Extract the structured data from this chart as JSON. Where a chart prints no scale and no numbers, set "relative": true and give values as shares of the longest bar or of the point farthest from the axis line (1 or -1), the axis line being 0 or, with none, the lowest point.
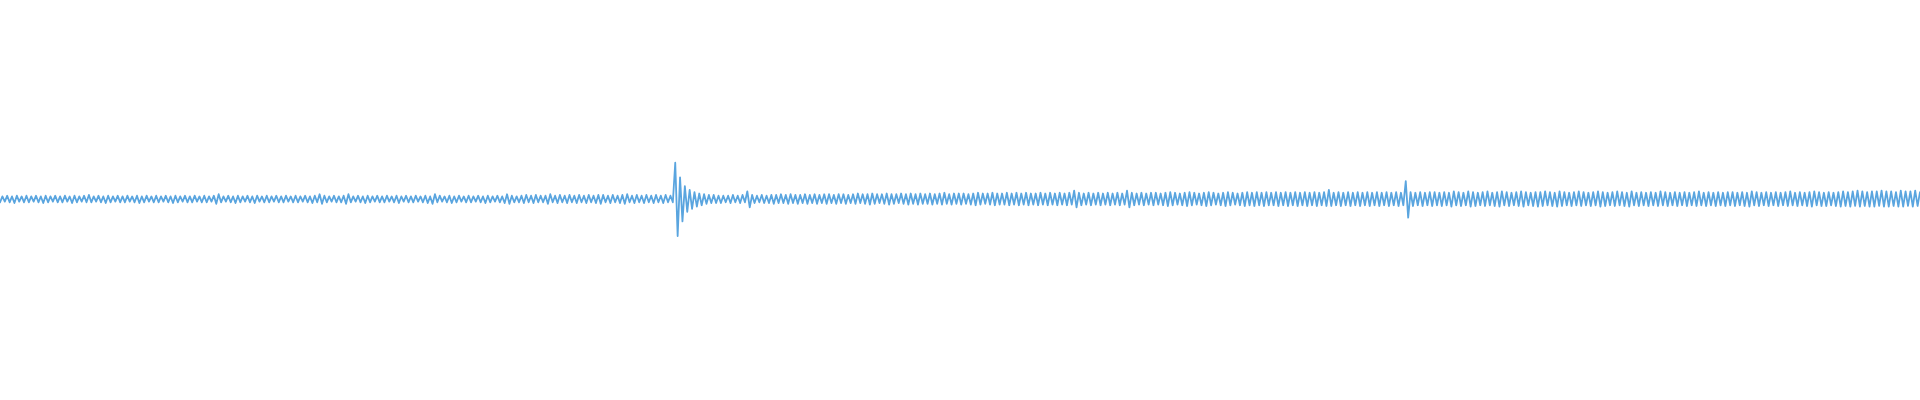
{
  "chart_data": {
    "type": "line",
    "relative": true,
    "marker": "none",
    "color": "#5aa5df",
    "categories": [
      null,
      null,
      null,
      null,
      null,
      null,
      null,
      null,
      null,
      null,
      null,
      null,
      null,
      null,
      null,
      null,
      null,
      null,
      null,
      null,
      null,
      null,
      null,
      null,
      null,
      null,
      null,
      null,
      null,
      null,
      null,
      null,
      null,
      null,
      null,
      null,
      null,
      null,
      null,
      null,
      null,
      null,
      null,
      null,
      null,
      null,
      null,
      null,
      null,
      null,
      null,
      null,
      null,
      null,
      null,
      null,
      null,
      null,
      null,
      null,
      null,
      null,
      null,
      null,
      null,
      null,
      null,
      null,
      null,
      null,
      null,
      null,
      null,
      null,
      null,
      null,
      null,
      null,
      null,
      null,
      null,
      null,
      null,
      null,
      null,
      null,
      null,
      null,
      null,
      null,
      null,
      null,
      null,
      null,
      null,
      null,
      null,
      null,
      null,
      null,
      null,
      null,
      null,
      null,
      null,
      null,
      null,
      null,
      null,
      null,
      null,
      null,
      null,
      null,
      null,
      null,
      null,
      null,
      null,
      null,
      null,
      null,
      null,
      null,
      null,
      null,
      null,
      null,
      null,
      null,
      null,
      null,
      null,
      null,
      null,
      null,
      null,
      null,
      null,
      null,
      null,
      null,
      null,
      null,
      null,
      null,
      null,
      null,
      null,
      null,
      null,
      null,
      null,
      null,
      null,
      null,
      null,
      null,
      null,
      null,
      null,
      null,
      null,
      null,
      null,
      null,
      null,
      null,
      null,
      null,
      null,
      null,
      null,
      null,
      null,
      null,
      null,
      null,
      null,
      null,
      null,
      null,
      null,
      null,
      null,
      null,
      null,
      null,
      null,
      null,
      null,
      null,
      null,
      null,
      null,
      null,
      null,
      null,
      null,
      null,
      null,
      null,
      null,
      null,
      null,
      null,
      null,
      null,
      null,
      null,
      null,
      null,
      null,
      null,
      null,
      null,
      null,
      null,
      null,
      null,
      null,
      null,
      null,
      null,
      null,
      null,
      null,
      null,
      null,
      null,
      null,
      null,
      null,
      null,
      null,
      null,
      null,
      null,
      null,
      null,
      null,
      null,
      null,
      null,
      null,
      null,
      null,
      null,
      null,
      null,
      null,
      null,
      null,
      null,
      null,
      null,
      null,
      null,
      null,
      null,
      null,
      null,
      null,
      null,
      null,
      null,
      null,
      null,
      null,
      null,
      null,
      null,
      null,
      null,
      null,
      null,
      null,
      null,
      null,
      null,
      null,
      null,
      null,
      null,
      null,
      null,
      null,
      null,
      null,
      null,
      null,
      null,
      null,
      null,
      null,
      null,
      null,
      null,
      null,
      null,
      null,
      null,
      null,
      null,
      null,
      null,
      null,
      null,
      null,
      null,
      null,
      null,
      null,
      null,
      null,
      null,
      null,
      null,
      null,
      null,
      null,
      null,
      null,
      null,
      null,
      null,
      null,
      null,
      null,
      null,
      null,
      null,
      null,
      null,
      null,
      null,
      null,
      null,
      null,
      null,
      null,
      null,
      null,
      null,
      null,
      null,
      null,
      null,
      null,
      null,
      null,
      null,
      null,
      null,
      null,
      null,
      null,
      null,
      null,
      null,
      null,
      null,
      null,
      null,
      null,
      null,
      null,
      null,
      null,
      null,
      null,
      null,
      null,
      null,
      null,
      null,
      null,
      null,
      null,
      null,
      null,
      null,
      null,
      null,
      null,
      null,
      null,
      null,
      null,
      null,
      null,
      null,
      null,
      null,
      null,
      null,
      null,
      null,
      null,
      null,
      null,
      null,
      null,
      null,
      null,
      null,
      null,
      null,
      null,
      null,
      null,
      null,
      null,
      null,
      null,
      null,
      null,
      null,
      null,
      null,
      null,
      null,
      null,
      null,
      null,
      null,
      null,
      null,
      null,
      null,
      null,
      null,
      null,
      null,
      null,
      null,
      null,
      null,
      null,
      null,
      null,
      null,
      null,
      null,
      null,
      null,
      null,
      null,
      null,
      null,
      null,
      null,
      null,
      null,
      null,
      null,
      null,
      null,
      null,
      null,
      null,
      null,
      null,
      null,
      null,
      null,
      null,
      null,
      null,
      null,
      null,
      null,
      null,
      null,
      null,
      null,
      null,
      null,
      null,
      null,
      null,
      null,
      null,
      null,
      null,
      null,
      null,
      null,
      null,
      null,
      null,
      null,
      null,
      null,
      null,
      null,
      null,
      null,
      null,
      null,
      null,
      null,
      null,
      null,
      null,
      null,
      null,
      null,
      null,
      null,
      null,
      null,
      null,
      null,
      null,
      null,
      null,
      null,
      null,
      null,
      null,
      null,
      null,
      null,
      null,
      null,
      null,
      null,
      null,
      null,
      null,
      null,
      null,
      null,
      null,
      null,
      null,
      null,
      null,
      null,
      null,
      null,
      null,
      null,
      null,
      null,
      null,
      null,
      null,
      null,
      null,
      null,
      null,
      null,
      null,
      null,
      null,
      null,
      null,
      null,
      null,
      null,
      null,
      null,
      null,
      null,
      null,
      null,
      null,
      null,
      null,
      null,
      null,
      null,
      null,
      null,
      null,
      null,
      null,
      null,
      null,
      null,
      null,
      null,
      null,
      null,
      null,
      null,
      null,
      null,
      null,
      null,
      null,
      null,
      null,
      null,
      null,
      null,
      null,
      null,
      null,
      null,
      null,
      null,
      null,
      null,
      null,
      null,
      null,
      null,
      null,
      null,
      null,
      null,
      null,
      null,
      null,
      null,
      null,
      null,
      null,
      null,
      null,
      null,
      null,
      null,
      null,
      null,
      null,
      null,
      null,
      null,
      null,
      null,
      null,
      null,
      null,
      null,
      null,
      null,
      null,
      null,
      null,
      null,
      null,
      null,
      null,
      null,
      null,
      null,
      null,
      null,
      null,
      null,
      null,
      null,
      null,
      null,
      null,
      null,
      null,
      null,
      null,
      null,
      null,
      null,
      null,
      null,
      null,
      null,
      null,
      null,
      null,
      null,
      null,
      null,
      null,
      null,
      null,
      null,
      null,
      null,
      null,
      null,
      null,
      null,
      null,
      null,
      null,
      null,
      null,
      null,
      null,
      null,
      null,
      null,
      null,
      null,
      null,
      null,
      null,
      null,
      null,
      null,
      null,
      null,
      null,
      null,
      null,
      null,
      null,
      null,
      null,
      null,
      null,
      null,
      null,
      null,
      null,
      null,
      null,
      null,
      null,
      null,
      null,
      null,
      null,
      null,
      null,
      null,
      null,
      null,
      null,
      null,
      null,
      null,
      null,
      null,
      null,
      null,
      null,
      null,
      null,
      null,
      null,
      null,
      null,
      null,
      null,
      null,
      null,
      null,
      null,
      null,
      null,
      null,
      null,
      null,
      null,
      null,
      null,
      null,
      null,
      null,
      null,
      null,
      null,
      null,
      null,
      null,
      null,
      null,
      null,
      null,
      null,
      null,
      null,
      null,
      null,
      null,
      null,
      null,
      null,
      null,
      null,
      null,
      null,
      null,
      null,
      null,
      null,
      null,
      null,
      null,
      null,
      null,
      null,
      null,
      null,
      null
    ],
    "values": [
      0.46,
      0.54,
      0.47,
      0.55,
      0.46,
      0.54,
      0.45,
      0.55,
      0.47,
      0.54,
      0.46,
      0.55,
      0.46,
      0.54,
      0.47,
      0.55,
      0.46,
      0.54,
      0.45,
      0.55,
      0.46,
      0.54,
      0.47,
      0.55,
      0.46,
      0.54,
      0.46,
      0.55,
      0.47,
      0.54,
      0.45,
      0.55,
      0.46,
      0.54,
      0.47,
      0.55,
      0.46,
      0.56,
      0.46,
      0.54,
      0.47,
      0.55,
      0.46,
      0.54,
      0.45,
      0.55,
      0.46,
      0.54,
      0.47,
      0.55,
      0.46,
      0.54,
      0.46,
      0.55,
      0.47,
      0.54,
      0.46,
      0.55,
      0.45,
      0.54,
      0.46,
      0.55,
      0.47,
      0.54,
      0.46,
      0.55,
      0.46,
      0.54,
      0.47,
      0.55,
      0.46,
      0.54,
      0.45,
      0.55,
      0.46,
      0.54,
      0.47,
      0.55,
      0.46,
      0.54,
      0.46,
      0.55,
      0.47,
      0.54,
      0.46,
      0.55,
      0.46,
      0.54,
      0.47,
      0.55,
      0.44,
      0.57,
      0.46,
      0.54,
      0.47,
      0.55,
      0.46,
      0.54,
      0.45,
      0.55,
      0.46,
      0.54,
      0.47,
      0.55,
      0.46,
      0.54,
      0.45,
      0.55,
      0.47,
      0.54,
      0.46,
      0.55,
      0.46,
      0.54,
      0.47,
      0.55,
      0.46,
      0.54,
      0.46,
      0.55,
      0.47,
      0.54,
      0.46,
      0.55,
      0.46,
      0.54,
      0.47,
      0.55,
      0.46,
      0.54,
      0.45,
      0.55,
      0.46,
      0.57,
      0.44,
      0.55,
      0.46,
      0.54,
      0.47,
      0.55,
      0.46,
      0.54,
      0.46,
      0.55,
      0.44,
      0.57,
      0.46,
      0.54,
      0.47,
      0.55,
      0.46,
      0.54,
      0.45,
      0.55,
      0.46,
      0.54,
      0.47,
      0.55,
      0.46,
      0.54,
      0.46,
      0.55,
      0.47,
      0.54,
      0.46,
      0.55,
      0.45,
      0.54,
      0.47,
      0.55,
      0.46,
      0.54,
      0.46,
      0.55,
      0.47,
      0.54,
      0.46,
      0.55,
      0.45,
      0.54,
      0.44,
      0.57,
      0.46,
      0.55,
      0.47,
      0.54,
      0.46,
      0.55,
      0.45,
      0.54,
      0.46,
      0.55,
      0.47,
      0.54,
      0.46,
      0.55,
      0.46,
      0.54,
      0.47,
      0.55,
      0.46,
      0.54,
      0.45,
      0.55,
      0.46,
      0.54,
      0.47,
      0.55,
      0.46,
      0.54,
      0.45,
      0.57,
      0.44,
      0.55,
      0.46,
      0.54,
      0.46,
      0.55,
      0.45,
      0.56,
      0.46,
      0.55,
      0.45,
      0.56,
      0.46,
      0.55,
      0.46,
      0.55,
      0.44,
      0.57,
      0.46,
      0.55,
      0.45,
      0.56,
      0.46,
      0.55,
      0.45,
      0.56,
      0.46,
      0.55,
      0.45,
      0.56,
      0.46,
      0.55,
      0.45,
      0.56,
      0.46,
      0.55,
      0.45,
      0.56,
      0.44,
      0.56,
      0.46,
      0.55,
      0.45,
      0.56,
      0.46,
      0.55,
      0.45,
      0.56,
      0.44,
      0.57,
      0.46,
      0.55,
      0.45,
      0.56,
      0.46,
      0.55,
      0.45,
      0.56,
      0.46,
      0.55,
      0.45,
      0.56,
      0.46,
      0.55,
      0.45,
      0.56,
      0.46,
      0.55,
      0.46,
      1.0,
      0.0,
      0.8,
      0.2,
      0.68,
      0.33,
      0.63,
      0.37,
      0.6,
      0.4,
      0.58,
      0.42,
      0.57,
      0.44,
      0.56,
      0.45,
      0.56,
      0.45,
      0.55,
      0.45,
      0.55,
      0.46,
      0.55,
      0.45,
      0.56,
      0.46,
      0.55,
      0.45,
      0.56,
      0.46,
      0.61,
      0.39,
      0.56,
      0.45,
      0.55,
      0.46,
      0.56,
      0.45,
      0.55,
      0.45,
      0.56,
      0.44,
      0.56,
      0.45,
      0.57,
      0.45,
      0.56,
      0.44,
      0.57,
      0.45,
      0.56,
      0.44,
      0.56,
      0.45,
      0.57,
      0.44,
      0.56,
      0.45,
      0.57,
      0.44,
      0.56,
      0.45,
      0.57,
      0.44,
      0.57,
      0.45,
      0.56,
      0.44,
      0.57,
      0.45,
      0.57,
      0.44,
      0.56,
      0.45,
      0.57,
      0.44,
      0.58,
      0.45,
      0.57,
      0.44,
      0.57,
      0.43,
      0.58,
      0.44,
      0.57,
      0.45,
      0.57,
      0.44,
      0.58,
      0.43,
      0.57,
      0.44,
      0.57,
      0.45,
      0.58,
      0.44,
      0.57,
      0.43,
      0.58,
      0.44,
      0.57,
      0.43,
      0.58,
      0.44,
      0.57,
      0.44,
      0.58,
      0.43,
      0.57,
      0.44,
      0.58,
      0.43,
      0.59,
      0.44,
      0.57,
      0.43,
      0.58,
      0.44,
      0.58,
      0.43,
      0.58,
      0.44,
      0.57,
      0.43,
      0.58,
      0.42,
      0.59,
      0.43,
      0.58,
      0.44,
      0.58,
      0.43,
      0.59,
      0.42,
      0.58,
      0.43,
      0.58,
      0.43,
      0.59,
      0.42,
      0.58,
      0.43,
      0.59,
      0.42,
      0.58,
      0.43,
      0.59,
      0.42,
      0.58,
      0.43,
      0.58,
      0.42,
      0.59,
      0.43,
      0.58,
      0.42,
      0.59,
      0.43,
      0.58,
      0.42,
      0.59,
      0.43,
      0.58,
      0.42,
      0.59,
      0.43,
      0.62,
      0.39,
      0.59,
      0.42,
      0.58,
      0.43,
      0.59,
      0.42,
      0.58,
      0.43,
      0.59,
      0.42,
      0.58,
      0.43,
      0.59,
      0.42,
      0.58,
      0.43,
      0.59,
      0.42,
      0.58,
      0.43,
      0.62,
      0.39,
      0.59,
      0.42,
      0.58,
      0.43,
      0.59,
      0.42,
      0.58,
      0.43,
      0.59,
      0.42,
      0.59,
      0.43,
      0.58,
      0.42,
      0.59,
      0.41,
      0.6,
      0.42,
      0.59,
      0.43,
      0.58,
      0.42,
      0.59,
      0.41,
      0.6,
      0.42,
      0.59,
      0.43,
      0.58,
      0.42,
      0.59,
      0.41,
      0.6,
      0.42,
      0.59,
      0.43,
      0.58,
      0.42,
      0.59,
      0.41,
      0.6,
      0.42,
      0.59,
      0.43,
      0.58,
      0.42,
      0.59,
      0.41,
      0.6,
      0.42,
      0.59,
      0.41,
      0.6,
      0.42,
      0.59,
      0.41,
      0.6,
      0.42,
      0.59,
      0.42,
      0.6,
      0.41,
      0.59,
      0.42,
      0.6,
      0.41,
      0.59,
      0.42,
      0.6,
      0.41,
      0.59,
      0.42,
      0.6,
      0.41,
      0.59,
      0.42,
      0.6,
      0.41,
      0.59,
      0.42,
      0.6,
      0.41,
      0.63,
      0.41,
      0.59,
      0.42,
      0.6,
      0.41,
      0.59,
      0.42,
      0.6,
      0.41,
      0.59,
      0.42,
      0.6,
      0.41,
      0.59,
      0.42,
      0.6,
      0.41,
      0.59,
      0.42,
      0.6,
      0.41,
      0.59,
      0.42,
      0.6,
      0.41,
      0.59,
      0.42,
      0.6,
      0.41,
      0.59,
      0.42,
      0.75,
      0.25,
      0.6,
      0.41,
      0.59,
      0.42,
      0.6,
      0.41,
      0.59,
      0.42,
      0.6,
      0.41,
      0.6,
      0.42,
      0.59,
      0.41,
      0.6,
      0.42,
      0.59,
      0.4,
      0.61,
      0.42,
      0.6,
      0.41,
      0.59,
      0.42,
      0.61,
      0.4,
      0.6,
      0.41,
      0.59,
      0.42,
      0.6,
      0.41,
      0.61,
      0.42,
      0.59,
      0.41,
      0.6,
      0.4,
      0.61,
      0.42,
      0.6,
      0.41,
      0.59,
      0.42,
      0.6,
      0.41,
      0.61,
      0.4,
      0.6,
      0.42,
      0.59,
      0.41,
      0.6,
      0.4,
      0.6,
      0.41,
      0.61,
      0.42,
      0.6,
      0.41,
      0.59,
      0.4,
      0.61,
      0.41,
      0.6,
      0.42,
      0.59,
      0.41,
      0.6,
      0.42,
      0.61,
      0.41,
      0.6,
      0.42,
      0.59,
      0.41,
      0.6,
      0.42,
      0.61,
      0.4,
      0.6,
      0.41,
      0.59,
      0.42,
      0.6,
      0.41,
      0.61,
      0.42,
      0.6,
      0.41,
      0.59,
      0.4,
      0.61,
      0.42,
      0.59,
      0.41,
      0.6,
      0.42,
      0.59,
      0.41,
      0.6,
      0.42,
      0.59,
      0.41,
      0.61,
      0.42,
      0.6,
      0.41,
      0.59,
      0.42,
      0.6,
      0.41,
      0.59,
      0.42,
      0.6,
      0.41,
      0.59,
      0.42,
      0.6,
      0.41,
      0.61,
      0.42,
      0.59,
      0.41,
      0.6,
      0.42,
      0.59,
      0.41,
      0.6,
      0.42,
      0.59,
      0.41,
      0.6,
      0.42,
      0.6,
      0.41,
      0.59,
      0.42,
      0.6,
      0.41,
      0.59,
      0.4,
      0.61,
      0.42,
      0.6,
      0.41,
      0.59,
      0.42,
      0.6,
      0.41,
      0.59,
      0.42,
      0.6,
      0.41,
      0.59,
      0.42,
      0.6,
      0.41,
      0.61,
      0.42,
      0.59,
      0.41,
      0.6,
      0.42,
      0.59,
      0.41,
      0.6,
      0.4,
      0.61,
      0.42,
      0.6,
      0.41,
      0.59,
      0.41,
      0.6,
      0.42,
      0.59,
      0.41,
      0.6,
      0.4,
      0.61,
      0.41,
      0.6,
      0.4,
      0.61,
      0.41,
      0.62,
      0.4,
      0.61,
      0.41,
      0.6,
      0.4,
      0.61,
      0.4,
      0.61,
      0.41,
      0.62,
      0.4,
      0.61,
      0.4,
      0.61,
      0.41,
      0.6,
      0.4,
      0.62,
      0.4,
      0.61,
      0.41,
      0.61,
      0.4,
      0.62,
      0.41,
      0.6
    ]
  }
}
